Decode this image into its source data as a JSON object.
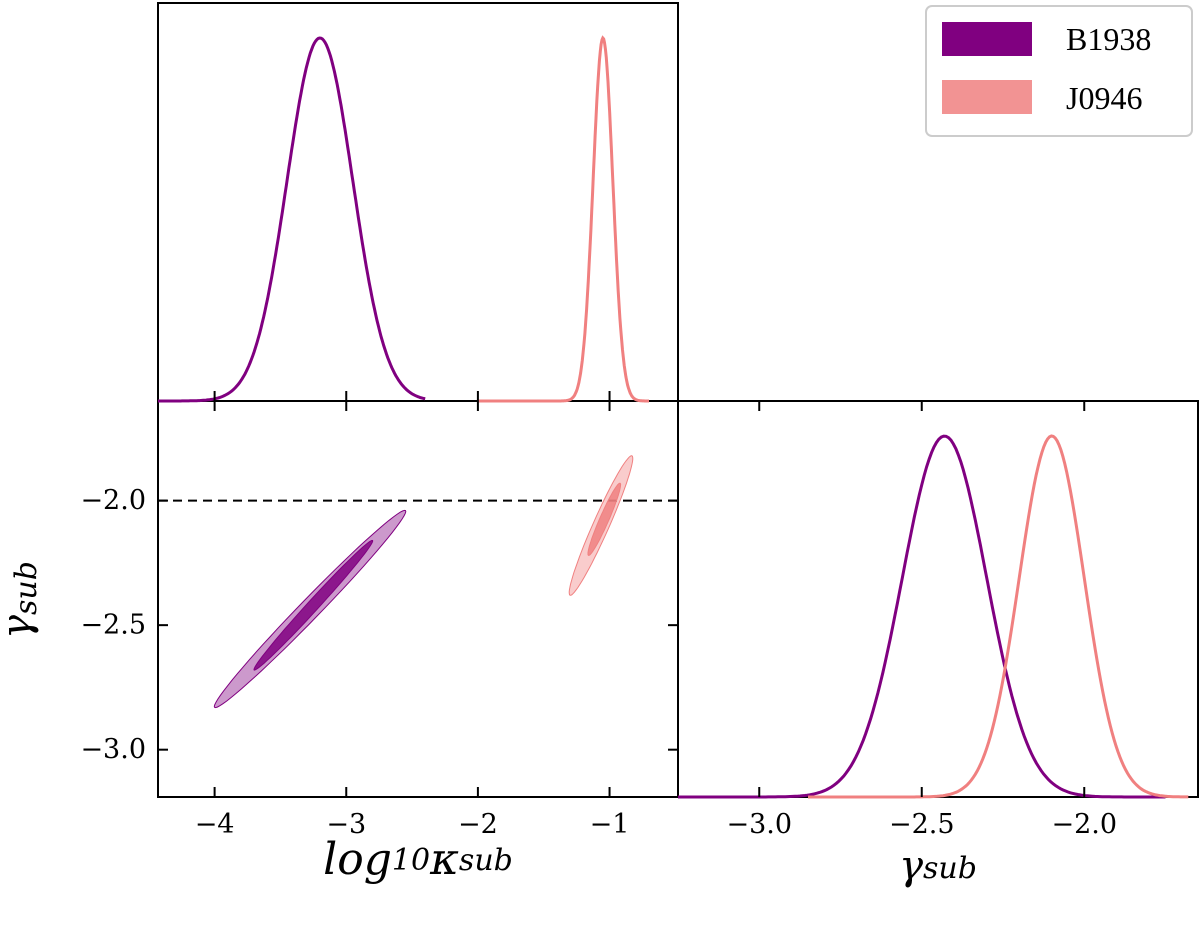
{
  "chart_data": {
    "type": "corner",
    "series": [
      {
        "name": "B1938",
        "color": "#800080",
        "kappa_marginal": {
          "mean": -3.2,
          "sd": 0.25
        },
        "gamma_marginal": {
          "mean": -2.43,
          "sd": 0.13
        },
        "contour_2d": {
          "center": [
            -3.28,
            -2.42
          ],
          "outer_68": {
            "from": [
              -3.7,
              -2.68
            ],
            "to": [
              -2.8,
              -2.16
            ]
          },
          "outer_95": {
            "from": [
              -4.0,
              -2.83
            ],
            "to": [
              -2.55,
              -2.04
            ]
          }
        }
      },
      {
        "name": "J0946",
        "color": "#F08080",
        "kappa_marginal": {
          "mean": -1.05,
          "sd": 0.075
        },
        "gamma_marginal": {
          "mean": -2.1,
          "sd": 0.1
        },
        "contour_2d": {
          "center": [
            -1.06,
            -2.1
          ],
          "outer_68": {
            "from": [
              -1.16,
              -2.22
            ],
            "to": [
              -0.92,
              -1.93
            ]
          },
          "outer_95": {
            "from": [
              -1.3,
              -2.38
            ],
            "to": [
              -0.83,
              -1.82
            ]
          }
        }
      }
    ],
    "reference_line": {
      "y": -2.0,
      "style": "dashed"
    },
    "axes": {
      "kappa": {
        "label": "log10κsub",
        "label_parts": [
          "log",
          "10",
          "κ",
          "sub"
        ],
        "range": [
          -4.43,
          -0.48
        ],
        "ticks": [
          -4,
          -3,
          -2,
          -1
        ],
        "tick_labels": [
          "−4",
          "−3",
          "−2",
          "−1"
        ]
      },
      "gamma_vertical": {
        "label": "γsub",
        "label_parts": [
          "γ",
          "sub"
        ],
        "range": [
          -3.19,
          -1.6
        ],
        "ticks": [
          -2.0,
          -2.5,
          -3.0
        ],
        "tick_labels": [
          "−2.0",
          "−2.5",
          "−3.0"
        ]
      },
      "gamma_horizontal": {
        "label": "γsub",
        "label_parts": [
          "γ",
          "sub"
        ],
        "range": [
          -3.25,
          -1.65
        ],
        "ticks": [
          -3.0,
          -2.5,
          -2.0
        ],
        "tick_labels": [
          "−3.0",
          "−2.5",
          "−2.0"
        ]
      }
    },
    "legend": {
      "position": "top-right",
      "entries": [
        "B1938",
        "J0946"
      ]
    }
  }
}
